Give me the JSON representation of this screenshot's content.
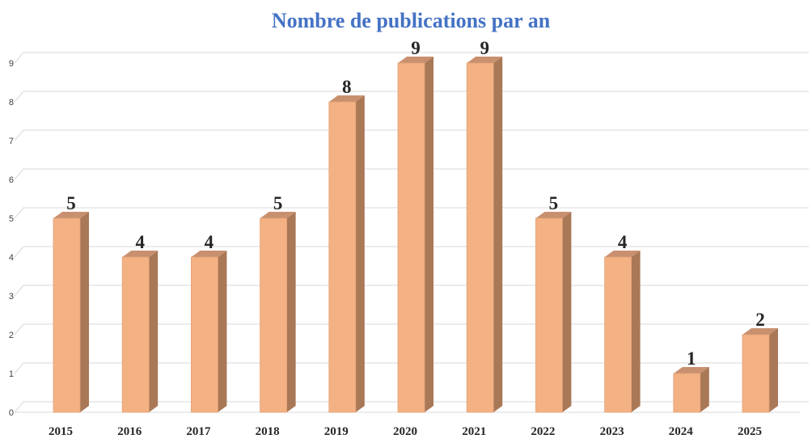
{
  "chart_data": {
    "type": "bar",
    "title": "Nombre de publications par an",
    "categories": [
      "2015",
      "2016",
      "2017",
      "2018",
      "2019",
      "2020",
      "2021",
      "2022",
      "2023",
      "2024",
      "2025"
    ],
    "values": [
      5,
      4,
      4,
      5,
      8,
      9,
      9,
      5,
      4,
      1,
      2
    ],
    "xlabel": "",
    "ylabel": "",
    "ylim": [
      0,
      9
    ],
    "yticks": [
      "0",
      "1",
      "2",
      "3",
      "4",
      "5",
      "6",
      "7",
      "8",
      "9"
    ],
    "grid": true,
    "legend": "none",
    "style": "3d-column"
  },
  "colors": {
    "title": "#4472c4",
    "bar_front": "#f4b183",
    "bar_side": "#a97857",
    "bar_top": "#c99070",
    "bar_edge": "#e2a378",
    "grid": "#d9d9d9"
  }
}
